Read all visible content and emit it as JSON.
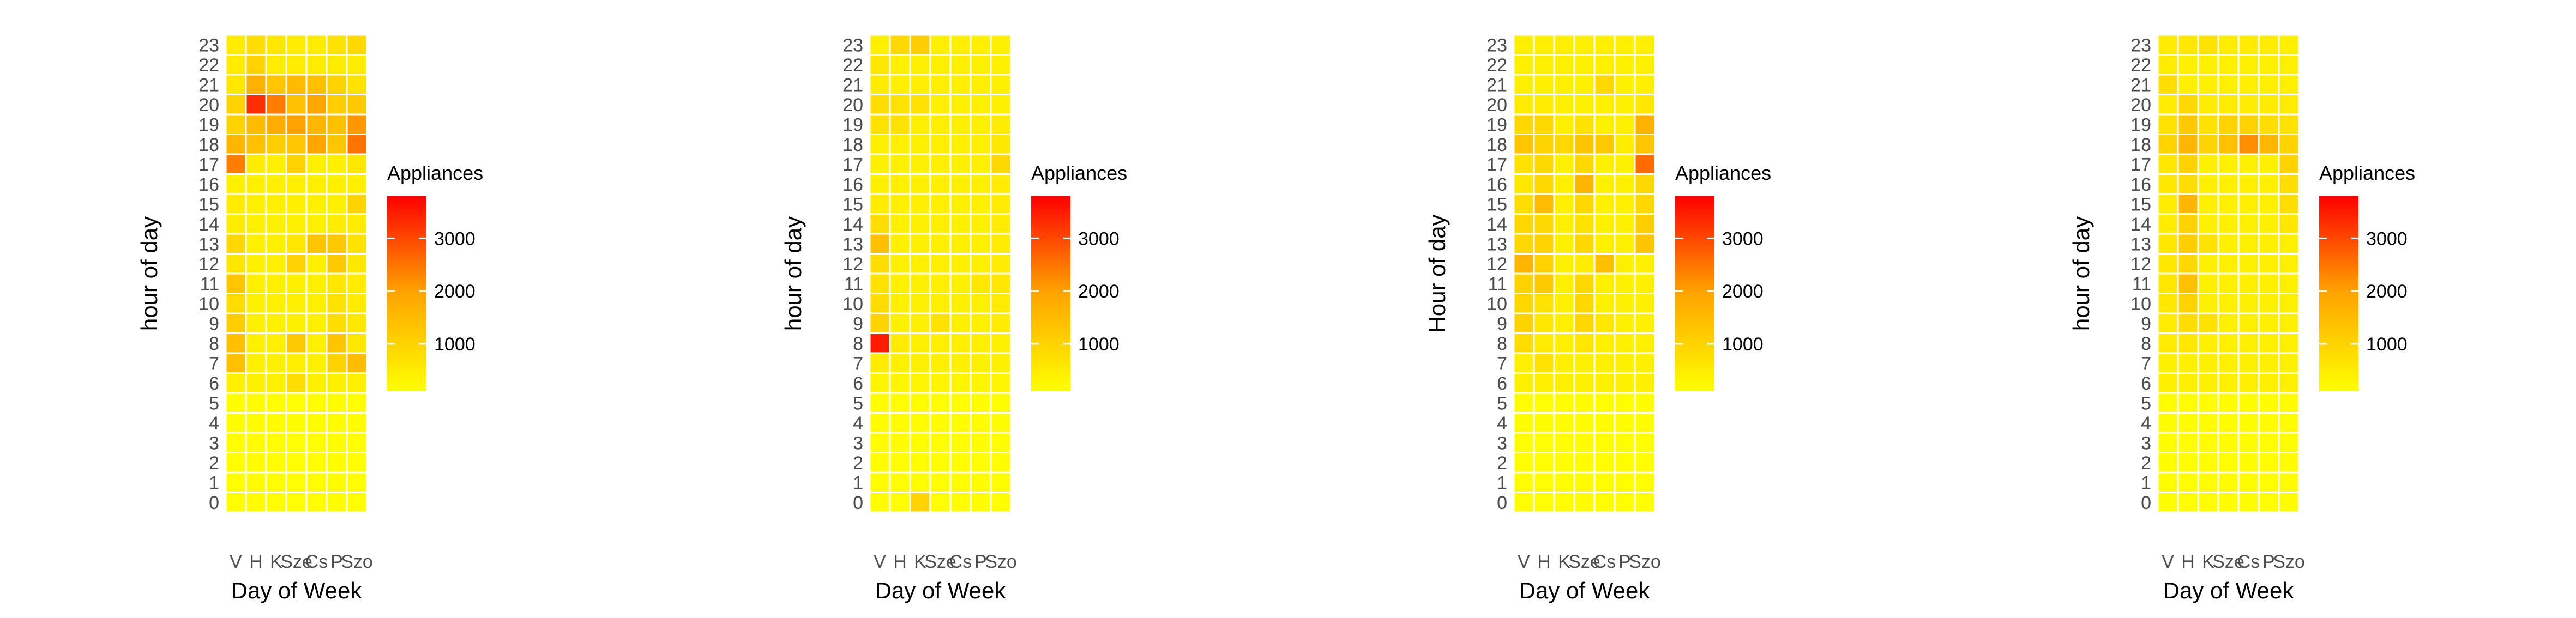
{
  "chart_data": [
    {
      "type": "heatmap",
      "xlabel": "Day of Week",
      "ylabel": "hour of day",
      "legend_title": "Appliances",
      "legend_placement": "right",
      "x": [
        "V",
        "H",
        "K",
        "Sze",
        "Cs",
        "P",
        "Szo"
      ],
      "y": [
        0,
        1,
        2,
        3,
        4,
        5,
        6,
        7,
        8,
        9,
        10,
        11,
        12,
        13,
        14,
        15,
        16,
        17,
        18,
        19,
        20,
        21,
        22,
        23
      ],
      "value_range": [
        100,
        3800
      ],
      "legend_ticks": [
        1000,
        2000,
        3000
      ],
      "colors": {
        "low": "#ffff00",
        "mid": "#ffa500",
        "high": "#ff0000"
      },
      "grid": false,
      "values": [
        [
          150,
          150,
          150,
          150,
          150,
          150,
          150
        ],
        [
          150,
          150,
          150,
          150,
          150,
          150,
          150
        ],
        [
          150,
          150,
          150,
          150,
          150,
          150,
          150
        ],
        [
          150,
          150,
          150,
          150,
          150,
          150,
          150
        ],
        [
          150,
          150,
          150,
          150,
          150,
          150,
          150
        ],
        [
          150,
          150,
          150,
          150,
          150,
          150,
          150
        ],
        [
          400,
          400,
          400,
          800,
          400,
          400,
          400
        ],
        [
          1400,
          400,
          400,
          400,
          400,
          1000,
          1500
        ],
        [
          1400,
          400,
          400,
          1200,
          400,
          1300,
          600
        ],
        [
          1100,
          400,
          400,
          400,
          400,
          800,
          600
        ],
        [
          800,
          400,
          400,
          400,
          400,
          700,
          500
        ],
        [
          1300,
          400,
          400,
          400,
          400,
          600,
          500
        ],
        [
          600,
          400,
          400,
          1000,
          400,
          1200,
          600
        ],
        [
          900,
          400,
          400,
          600,
          1300,
          1200,
          700
        ],
        [
          500,
          400,
          400,
          400,
          400,
          500,
          500
        ],
        [
          500,
          400,
          400,
          400,
          400,
          400,
          1000
        ],
        [
          400,
          400,
          400,
          400,
          400,
          400,
          400
        ],
        [
          2400,
          500,
          400,
          1000,
          400,
          400,
          600
        ],
        [
          1600,
          1400,
          1100,
          1300,
          1900,
          1300,
          2500
        ],
        [
          1000,
          1500,
          1800,
          2000,
          1600,
          1400,
          2100
        ],
        [
          1000,
          3300,
          2400,
          1400,
          1900,
          1100,
          1200
        ],
        [
          600,
          1700,
          1300,
          1500,
          1400,
          1000,
          700
        ],
        [
          500,
          1000,
          500,
          500,
          500,
          500,
          500
        ],
        [
          500,
          800,
          600,
          500,
          500,
          700,
          900
        ]
      ]
    },
    {
      "type": "heatmap",
      "xlabel": "Day of Week",
      "ylabel": "hour of day",
      "legend_title": "Appliances",
      "legend_placement": "right",
      "x": [
        "V",
        "H",
        "K",
        "Sze",
        "Cs",
        "P",
        "Szo"
      ],
      "y": [
        0,
        1,
        2,
        3,
        4,
        5,
        6,
        7,
        8,
        9,
        10,
        11,
        12,
        13,
        14,
        15,
        16,
        17,
        18,
        19,
        20,
        21,
        22,
        23
      ],
      "value_range": [
        100,
        3800
      ],
      "legend_ticks": [
        1000,
        2000,
        3000
      ],
      "colors": {
        "low": "#ffff00",
        "mid": "#ffa500",
        "high": "#ff0000"
      },
      "grid": false,
      "values": [
        [
          150,
          150,
          1000,
          150,
          150,
          150,
          150
        ],
        [
          150,
          150,
          150,
          150,
          150,
          150,
          150
        ],
        [
          150,
          150,
          150,
          150,
          150,
          150,
          150
        ],
        [
          150,
          150,
          150,
          150,
          150,
          150,
          150
        ],
        [
          150,
          150,
          150,
          150,
          150,
          150,
          150
        ],
        [
          150,
          150,
          150,
          150,
          150,
          150,
          150
        ],
        [
          300,
          300,
          300,
          300,
          300,
          300,
          300
        ],
        [
          500,
          400,
          400,
          400,
          400,
          400,
          400
        ],
        [
          3500,
          500,
          400,
          400,
          400,
          400,
          400
        ],
        [
          1000,
          400,
          400,
          700,
          400,
          400,
          500
        ],
        [
          800,
          400,
          400,
          400,
          400,
          400,
          500
        ],
        [
          700,
          400,
          400,
          400,
          400,
          600,
          600
        ],
        [
          800,
          400,
          400,
          400,
          400,
          400,
          500
        ],
        [
          1400,
          400,
          400,
          400,
          400,
          400,
          500
        ],
        [
          800,
          400,
          400,
          400,
          400,
          400,
          500
        ],
        [
          500,
          400,
          400,
          400,
          400,
          400,
          500
        ],
        [
          400,
          400,
          400,
          400,
          400,
          400,
          500
        ],
        [
          400,
          400,
          400,
          400,
          400,
          400,
          900
        ],
        [
          400,
          400,
          400,
          400,
          400,
          400,
          600
        ],
        [
          700,
          700,
          400,
          400,
          400,
          400,
          500
        ],
        [
          800,
          700,
          700,
          400,
          400,
          400,
          400
        ],
        [
          500,
          400,
          400,
          400,
          400,
          400,
          400
        ],
        [
          600,
          400,
          400,
          400,
          400,
          400,
          400
        ],
        [
          400,
          900,
          1100,
          400,
          400,
          400,
          400
        ]
      ]
    },
    {
      "type": "heatmap",
      "xlabel": "Day of Week",
      "ylabel": "Hour of day",
      "legend_title": "Appliances",
      "legend_placement": "right",
      "x": [
        "V",
        "H",
        "K",
        "Sze",
        "Cs",
        "P",
        "Szo"
      ],
      "y": [
        0,
        1,
        2,
        3,
        4,
        5,
        6,
        7,
        8,
        9,
        10,
        11,
        12,
        13,
        14,
        15,
        16,
        17,
        18,
        19,
        20,
        21,
        22,
        23
      ],
      "value_range": [
        100,
        3800
      ],
      "legend_ticks": [
        1000,
        2000,
        3000
      ],
      "colors": {
        "low": "#ffff00",
        "mid": "#ffa500",
        "high": "#ff0000"
      },
      "grid": false,
      "values": [
        [
          150,
          150,
          150,
          150,
          150,
          150,
          150
        ],
        [
          150,
          150,
          150,
          150,
          150,
          150,
          150
        ],
        [
          150,
          150,
          150,
          150,
          150,
          150,
          150
        ],
        [
          150,
          150,
          150,
          150,
          150,
          150,
          150
        ],
        [
          150,
          150,
          150,
          150,
          150,
          150,
          150
        ],
        [
          150,
          150,
          150,
          150,
          150,
          150,
          150
        ],
        [
          400,
          400,
          400,
          400,
          400,
          400,
          400
        ],
        [
          400,
          700,
          400,
          400,
          400,
          400,
          400
        ],
        [
          800,
          500,
          400,
          600,
          400,
          400,
          400
        ],
        [
          1000,
          600,
          400,
          900,
          600,
          400,
          400
        ],
        [
          900,
          700,
          400,
          900,
          400,
          400,
          400
        ],
        [
          1000,
          1200,
          400,
          900,
          400,
          400,
          400
        ],
        [
          1600,
          1000,
          400,
          500,
          1400,
          400,
          400
        ],
        [
          900,
          1000,
          400,
          900,
          400,
          400,
          1300
        ],
        [
          900,
          900,
          400,
          700,
          400,
          400,
          1100
        ],
        [
          800,
          1500,
          400,
          900,
          400,
          400,
          900
        ],
        [
          600,
          900,
          400,
          1600,
          400,
          400,
          900
        ],
        [
          700,
          900,
          400,
          900,
          400,
          400,
          2600
        ],
        [
          1300,
          1000,
          900,
          1300,
          1200,
          500,
          1300
        ],
        [
          900,
          900,
          400,
          700,
          400,
          400,
          1700
        ],
        [
          500,
          500,
          400,
          400,
          400,
          400,
          600
        ],
        [
          400,
          400,
          400,
          400,
          900,
          400,
          400
        ],
        [
          400,
          400,
          400,
          400,
          400,
          400,
          400
        ],
        [
          400,
          400,
          400,
          400,
          400,
          400,
          400
        ]
      ]
    },
    {
      "type": "heatmap",
      "xlabel": "Day of Week",
      "ylabel": "hour of day",
      "legend_title": "Appliances",
      "legend_placement": "right",
      "x": [
        "V",
        "H",
        "K",
        "Sze",
        "Cs",
        "P",
        "Szo"
      ],
      "y": [
        0,
        1,
        2,
        3,
        4,
        5,
        6,
        7,
        8,
        9,
        10,
        11,
        12,
        13,
        14,
        15,
        16,
        17,
        18,
        19,
        20,
        21,
        22,
        23
      ],
      "value_range": [
        100,
        3800
      ],
      "legend_ticks": [
        1000,
        2000,
        3000
      ],
      "colors": {
        "low": "#ffff00",
        "mid": "#ffa500",
        "high": "#ff0000"
      },
      "grid": false,
      "values": [
        [
          150,
          150,
          150,
          150,
          150,
          150,
          150
        ],
        [
          150,
          150,
          150,
          150,
          150,
          150,
          150
        ],
        [
          150,
          150,
          150,
          150,
          150,
          150,
          150
        ],
        [
          150,
          150,
          150,
          150,
          150,
          150,
          150
        ],
        [
          150,
          150,
          150,
          150,
          150,
          150,
          150
        ],
        [
          150,
          150,
          150,
          150,
          150,
          150,
          150
        ],
        [
          400,
          400,
          400,
          400,
          400,
          400,
          400
        ],
        [
          400,
          400,
          400,
          400,
          400,
          400,
          400
        ],
        [
          500,
          600,
          400,
          400,
          400,
          400,
          400
        ],
        [
          500,
          800,
          700,
          400,
          400,
          400,
          400
        ],
        [
          600,
          1000,
          400,
          400,
          400,
          400,
          400
        ],
        [
          600,
          1400,
          400,
          400,
          400,
          400,
          400
        ],
        [
          600,
          900,
          400,
          400,
          400,
          400,
          400
        ],
        [
          600,
          1100,
          700,
          400,
          400,
          400,
          400
        ],
        [
          500,
          1000,
          400,
          400,
          400,
          400,
          600
        ],
        [
          500,
          1600,
          400,
          400,
          400,
          400,
          800
        ],
        [
          600,
          800,
          400,
          400,
          400,
          400,
          800
        ],
        [
          600,
          1000,
          400,
          400,
          400,
          400,
          1000
        ],
        [
          1000,
          1600,
          1000,
          1400,
          2200,
          1600,
          1000
        ],
        [
          700,
          1200,
          700,
          1000,
          1000,
          800,
          700
        ],
        [
          500,
          900,
          500,
          500,
          500,
          500,
          500
        ],
        [
          800,
          400,
          400,
          400,
          400,
          400,
          400
        ],
        [
          500,
          400,
          400,
          400,
          400,
          400,
          400
        ],
        [
          500,
          600,
          700,
          500,
          500,
          500,
          400
        ]
      ]
    }
  ]
}
